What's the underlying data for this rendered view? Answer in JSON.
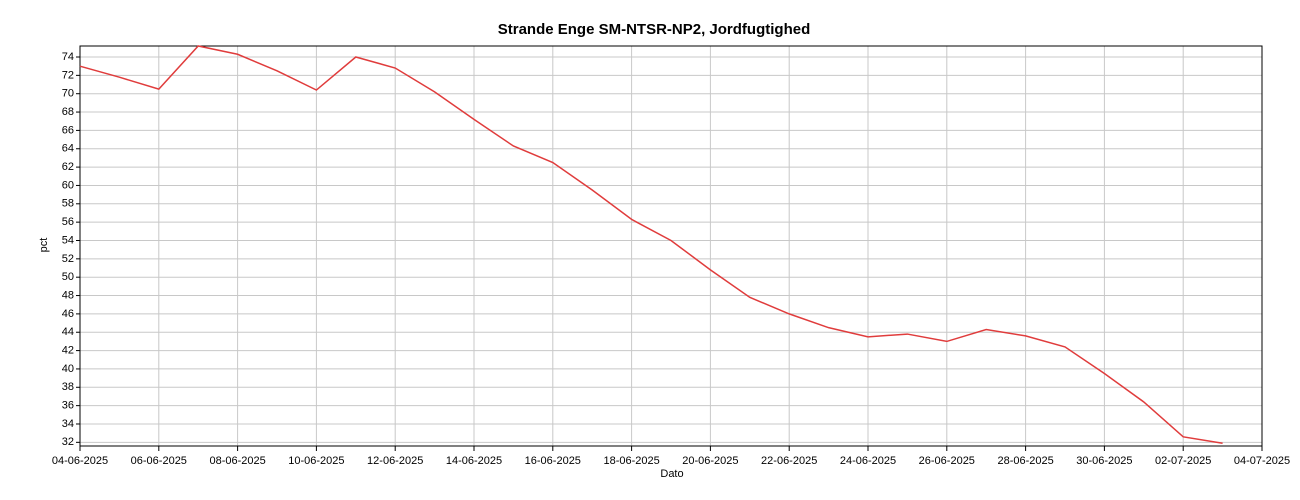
{
  "chart_data": {
    "type": "line",
    "title": "Strande Enge SM-NTSR-NP2, Jordfugtighed",
    "x_label": "Dato",
    "y_label": "pct",
    "x": [
      "04-06-2025",
      "05-06-2025",
      "06-06-2025",
      "07-06-2025",
      "08-06-2025",
      "09-06-2025",
      "10-06-2025",
      "11-06-2025",
      "12-06-2025",
      "13-06-2025",
      "14-06-2025",
      "15-06-2025",
      "16-06-2025",
      "17-06-2025",
      "18-06-2025",
      "19-06-2025",
      "20-06-2025",
      "21-06-2025",
      "22-06-2025",
      "23-06-2025",
      "24-06-2025",
      "25-06-2025",
      "26-06-2025",
      "27-06-2025",
      "28-06-2025",
      "29-06-2025",
      "30-06-2025",
      "01-07-2025",
      "02-07-2025",
      "03-07-2025"
    ],
    "series": [
      {
        "name": "Jordfugtighed",
        "color": "#e03c3c",
        "values": [
          73,
          71.8,
          70.5,
          75.2,
          74.3,
          72.5,
          70.4,
          74,
          72.8,
          70.2,
          67.2,
          64.3,
          62.5,
          59.5,
          56.3,
          54,
          50.8,
          47.8,
          46,
          44.5,
          43.5,
          43.8,
          43,
          44.3,
          43.6,
          42.4,
          39.5,
          36.4,
          32.6,
          31.9
        ]
      }
    ],
    "xlim": [
      "04-06-2025",
      "04-07-2025"
    ],
    "xticks": [
      "04-06-2025",
      "06-06-2025",
      "08-06-2025",
      "10-06-2025",
      "12-06-2025",
      "14-06-2025",
      "16-06-2025",
      "18-06-2025",
      "20-06-2025",
      "22-06-2025",
      "24-06-2025",
      "26-06-2025",
      "28-06-2025",
      "30-06-2025",
      "02-07-2025",
      "04-07-2025"
    ],
    "ylim": [
      31.6,
      75.2
    ],
    "yticks": [
      32,
      34,
      36,
      38,
      40,
      42,
      44,
      46,
      48,
      50,
      52,
      54,
      56,
      58,
      60,
      62,
      64,
      66,
      68,
      70,
      72,
      74
    ],
    "grid": true
  }
}
